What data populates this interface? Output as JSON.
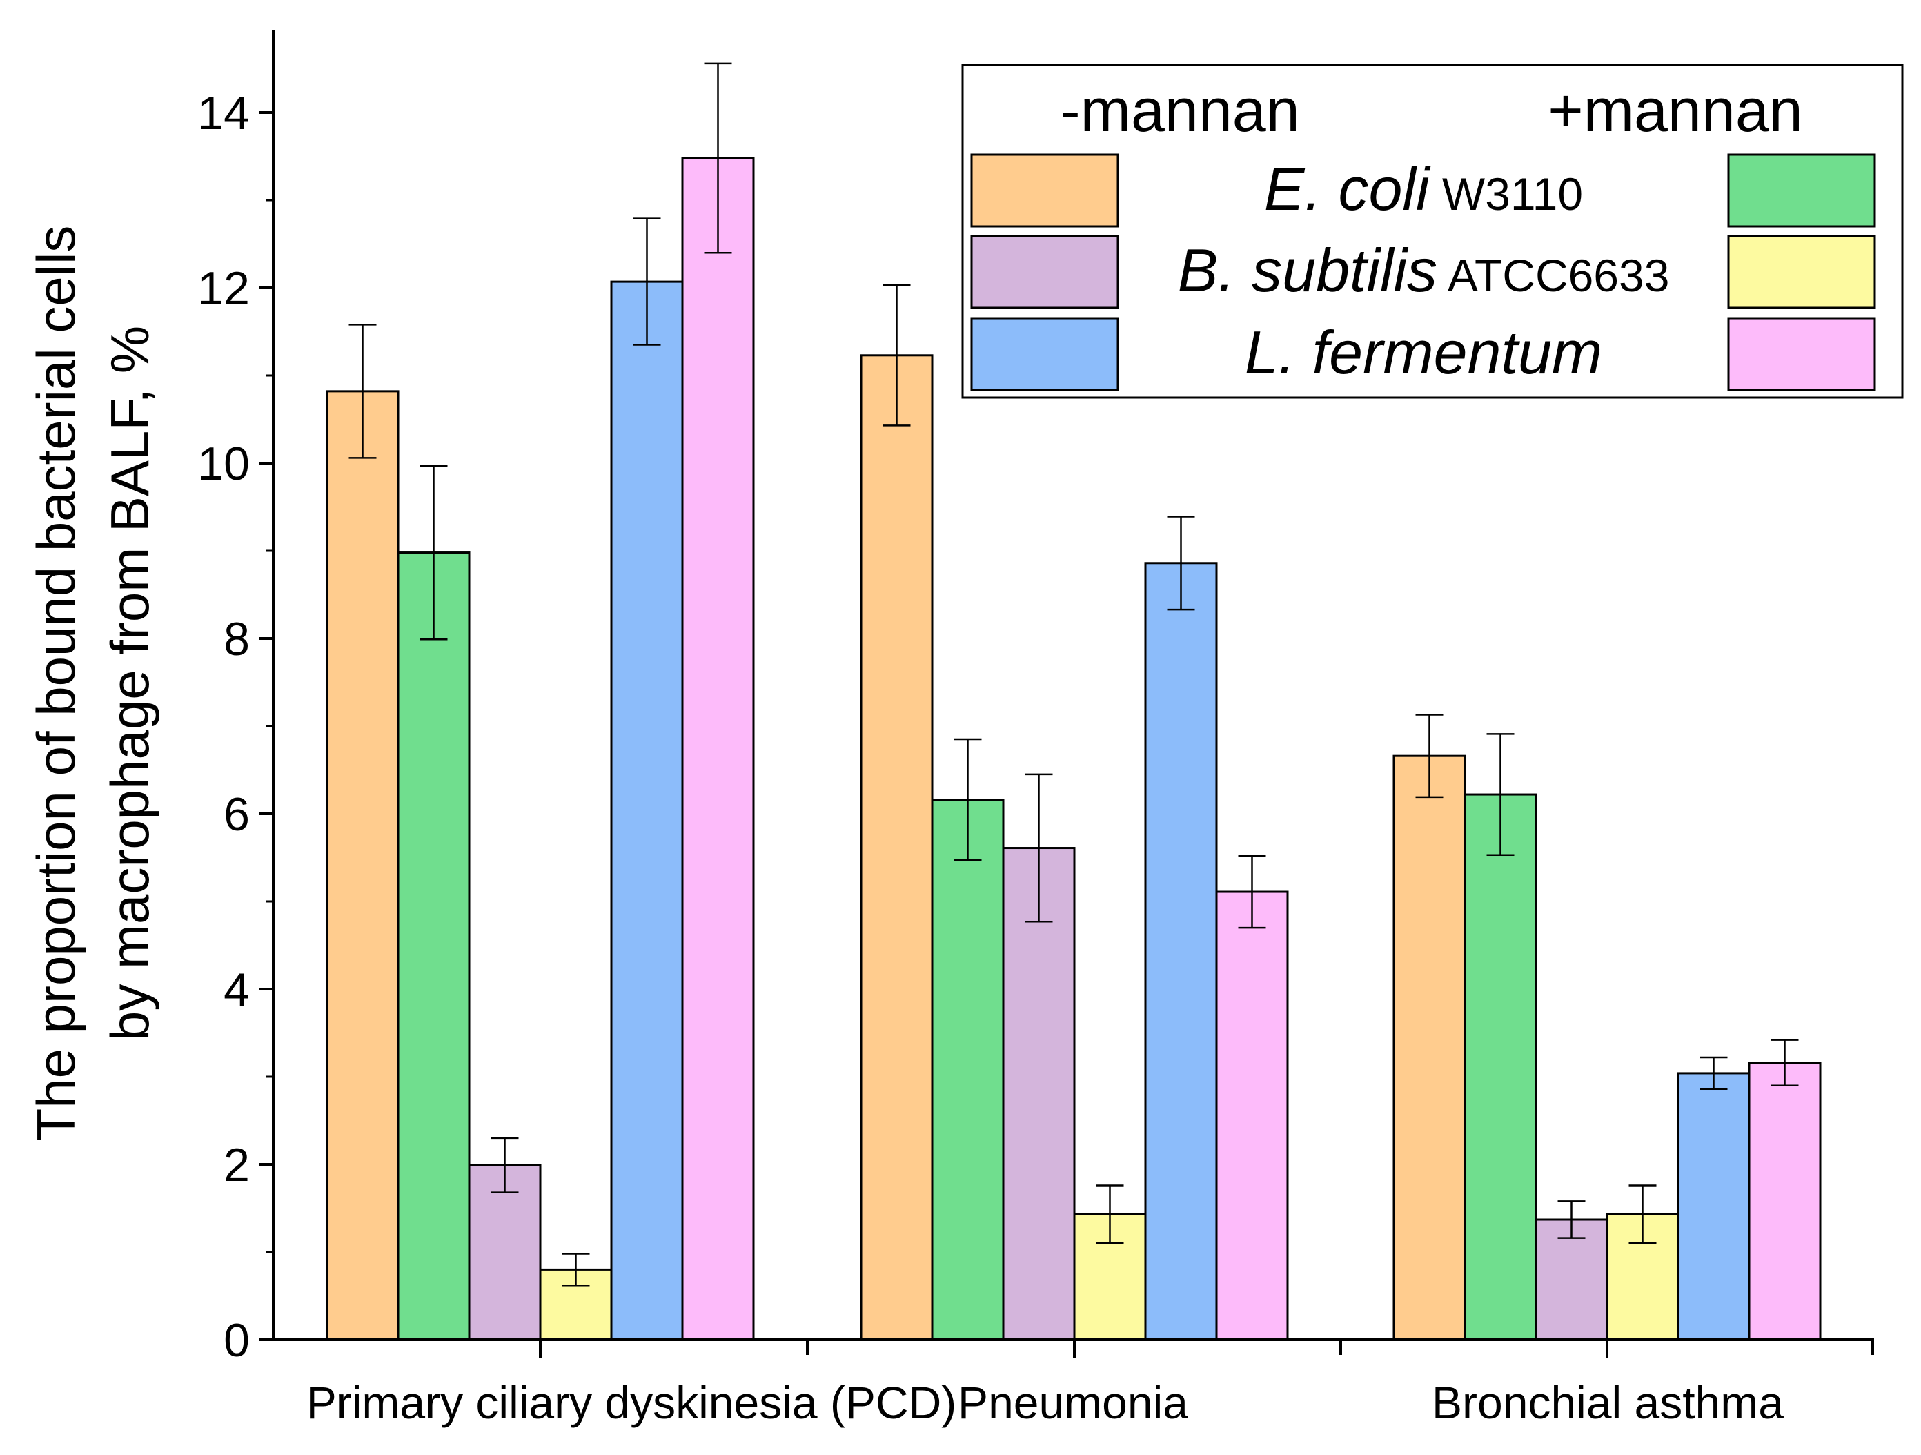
{
  "chart_data": {
    "type": "bar",
    "ylabel_lines": [
      "The proportion of bound bacterial cells",
      "by macrophage from BALF, %"
    ],
    "xlabel": "",
    "ylim": [
      0,
      15
    ],
    "y_ticks": [
      0,
      2,
      4,
      6,
      8,
      10,
      12,
      14
    ],
    "y_tick_labels": [
      "0",
      "2",
      "4",
      "6",
      "8",
      "10",
      "12",
      "14"
    ],
    "categories": [
      "Primary ciliary dyskinesia (PCD)",
      "Pneumonia",
      "Bronchial asthma"
    ],
    "series": [
      {
        "name": "E. coli W3110 -mannan",
        "color": "#FFCC8E",
        "values": [
          10.82,
          11.23,
          6.66
        ],
        "errors": [
          0.76,
          0.8,
          0.47
        ]
      },
      {
        "name": "E. coli W3110 +mannan",
        "color": "#70DE8E",
        "values": [
          8.98,
          6.16,
          6.22
        ],
        "errors": [
          0.99,
          0.69,
          0.69
        ]
      },
      {
        "name": "B. subtilis ATCC6633 -mannan",
        "color": "#D4B5DC",
        "values": [
          1.99,
          5.61,
          1.37
        ],
        "errors": [
          0.31,
          0.84,
          0.21
        ]
      },
      {
        "name": "B. subtilis ATCC6633 +mannan",
        "color": "#FDFAA0",
        "values": [
          0.8,
          1.43,
          1.43
        ],
        "errors": [
          0.18,
          0.33,
          0.33
        ]
      },
      {
        "name": "L. fermentum -mannan",
        "color": "#8CBCFA",
        "values": [
          12.07,
          8.86,
          3.04
        ],
        "errors": [
          0.72,
          0.53,
          0.18
        ]
      },
      {
        "name": "L. fermentum +mannan",
        "color": "#FDBBFA",
        "values": [
          13.48,
          5.11,
          3.16
        ],
        "errors": [
          1.08,
          0.41,
          0.26
        ]
      }
    ],
    "legend": {
      "headers": [
        "-mannan",
        "+mannan"
      ],
      "rows": [
        {
          "name": "E. coli",
          "strain": "W3110",
          "minus_color": "#FFCC8E",
          "plus_color": "#70DE8E"
        },
        {
          "name": "B. subtilis",
          "strain": "ATCC6633",
          "minus_color": "#D4B5DC",
          "plus_color": "#FDFAA0"
        },
        {
          "name": "L. fermentum",
          "strain": "",
          "minus_color": "#8CBCFA",
          "plus_color": "#FDBBFA"
        }
      ],
      "position": "top-right"
    }
  }
}
